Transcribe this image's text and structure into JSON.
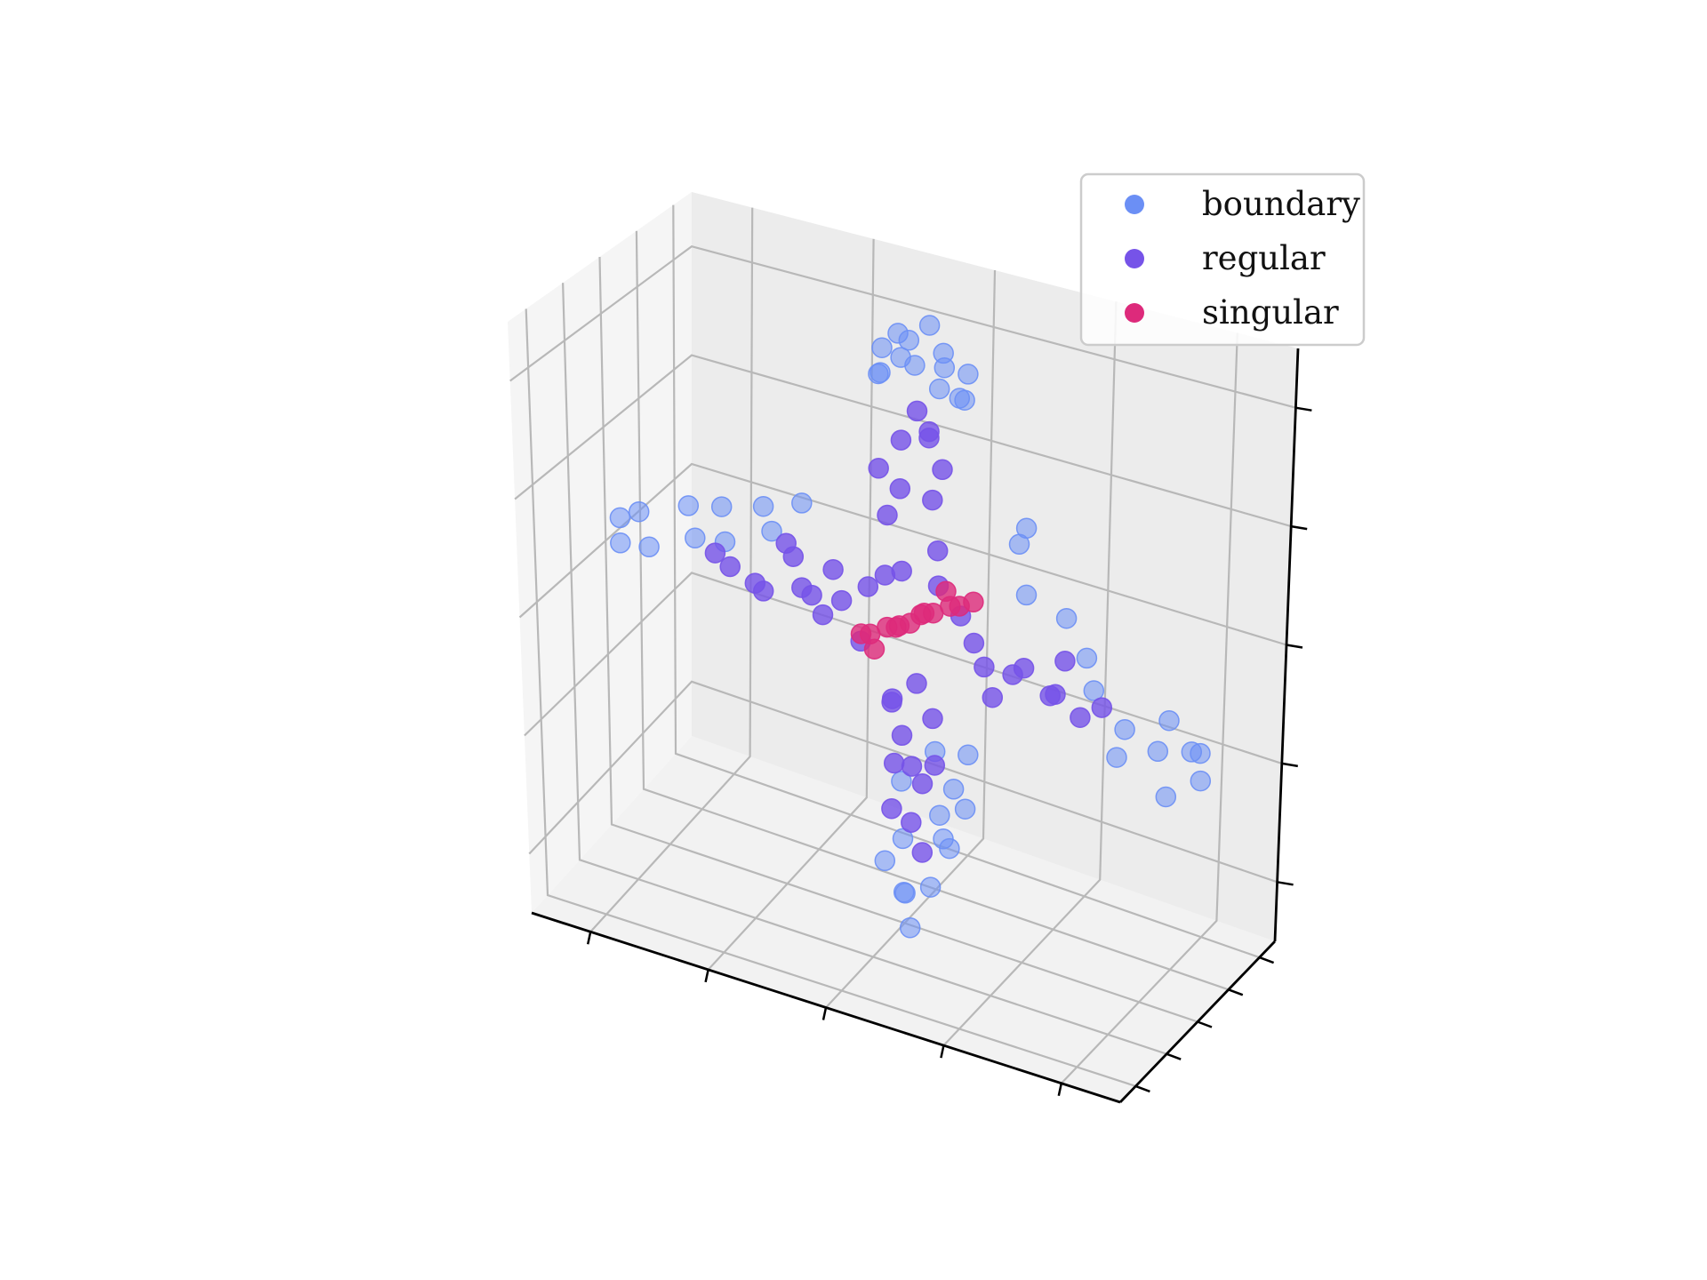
{
  "chart_data": {
    "type": "scatter",
    "projection": "3d",
    "title": "",
    "xlabel": "",
    "ylabel": "",
    "zlabel": "",
    "tick_labels_visible": false,
    "grid": true,
    "legend_position": "top-right",
    "series": [
      {
        "name": "boundary",
        "color": "#6b8ff5",
        "points": [
          [
            0.02,
            0.1,
            0.98
          ],
          [
            -0.06,
            0.02,
            0.95
          ],
          [
            0.1,
            -0.04,
            0.93
          ],
          [
            -0.12,
            0.06,
            0.88
          ],
          [
            0.16,
            0.04,
            0.86
          ],
          [
            -0.02,
            -0.1,
            0.9
          ],
          [
            0.06,
            0.14,
            0.84
          ],
          [
            -0.1,
            -0.06,
            0.82
          ],
          [
            0.18,
            -0.08,
            0.8
          ],
          [
            0.0,
            0.0,
            0.86
          ],
          [
            0.08,
            0.0,
            0.8
          ],
          [
            -0.14,
            0.12,
            0.78
          ],
          [
            0.12,
            0.1,
            0.76
          ],
          [
            -0.04,
            0.08,
            0.92
          ],
          [
            -0.98,
            0.1,
            0.06
          ],
          [
            -0.9,
            0.04,
            0.12
          ],
          [
            -0.84,
            -0.06,
            0.04
          ],
          [
            -0.76,
            0.12,
            0.16
          ],
          [
            -0.7,
            -0.02,
            0.1
          ],
          [
            -0.64,
            0.08,
            0.2
          ],
          [
            -0.58,
            -0.1,
            0.14
          ],
          [
            -0.52,
            0.14,
            0.22
          ],
          [
            -0.46,
            0.02,
            0.18
          ],
          [
            -0.94,
            -0.04,
            0.02
          ],
          [
            0.98,
            -0.08,
            -0.14
          ],
          [
            0.92,
            0.06,
            -0.18
          ],
          [
            0.86,
            -0.02,
            -0.08
          ],
          [
            0.8,
            0.1,
            -0.22
          ],
          [
            0.74,
            -0.12,
            -0.12
          ],
          [
            0.68,
            0.04,
            -0.26
          ],
          [
            0.62,
            -0.06,
            -0.04
          ],
          [
            0.94,
            0.12,
            -0.28
          ],
          [
            0.88,
            -0.1,
            -0.3
          ],
          [
            0.56,
            0.08,
            0.02
          ],
          [
            0.04,
            -0.08,
            -0.98
          ],
          [
            -0.02,
            0.06,
            -0.92
          ],
          [
            0.08,
            0.02,
            -0.86
          ],
          [
            -0.06,
            -0.04,
            -0.8
          ],
          [
            0.12,
            0.1,
            -0.74
          ],
          [
            0.02,
            -0.12,
            -0.68
          ],
          [
            0.1,
            0.04,
            -0.62
          ],
          [
            -0.04,
            0.08,
            -0.56
          ],
          [
            0.16,
            -0.02,
            -0.5
          ],
          [
            0.06,
            0.12,
            -0.44
          ],
          [
            0.2,
            0.0,
            -0.38
          ],
          [
            0.0,
            0.0,
            -0.9
          ],
          [
            0.18,
            0.06,
            -0.58
          ],
          [
            0.14,
            -0.06,
            -0.66
          ],
          [
            0.3,
            0.2,
            0.3
          ],
          [
            0.4,
            -0.1,
            0.22
          ],
          [
            0.48,
            0.12,
            0.12
          ],
          [
            0.36,
            0.04,
            0.4
          ],
          [
            -0.4,
            0.16,
            0.26
          ]
        ]
      },
      {
        "name": "regular",
        "color": "#7653e8",
        "points": [
          [
            0.0,
            0.04,
            0.7
          ],
          [
            0.06,
            -0.04,
            0.64
          ],
          [
            -0.06,
            0.08,
            0.58
          ],
          [
            0.08,
            0.06,
            0.52
          ],
          [
            -0.02,
            -0.08,
            0.46
          ],
          [
            0.04,
            0.1,
            0.4
          ],
          [
            -0.08,
            0.0,
            0.34
          ],
          [
            0.1,
            -0.06,
            0.28
          ],
          [
            0.02,
            0.12,
            0.62
          ],
          [
            -0.1,
            -0.04,
            0.5
          ],
          [
            -0.4,
            0.06,
            0.1
          ],
          [
            -0.34,
            -0.06,
            0.04
          ],
          [
            -0.28,
            0.1,
            0.08
          ],
          [
            -0.22,
            -0.02,
            0.02
          ],
          [
            -0.16,
            0.08,
            0.06
          ],
          [
            -0.46,
            -0.08,
            0.0
          ],
          [
            -0.52,
            0.04,
            -0.02
          ],
          [
            -0.58,
            -0.04,
            0.04
          ],
          [
            -0.36,
            0.14,
            -0.04
          ],
          [
            -0.26,
            -0.1,
            -0.02
          ],
          [
            -0.64,
            0.0,
            0.06
          ],
          [
            -0.44,
            0.12,
            0.12
          ],
          [
            0.2,
            0.04,
            -0.02
          ],
          [
            0.26,
            -0.06,
            -0.06
          ],
          [
            0.32,
            0.08,
            -0.1
          ],
          [
            0.38,
            -0.02,
            -0.04
          ],
          [
            0.44,
            0.1,
            -0.14
          ],
          [
            0.5,
            -0.08,
            -0.08
          ],
          [
            0.56,
            0.02,
            -0.16
          ],
          [
            0.62,
            0.06,
            -0.12
          ],
          [
            0.3,
            -0.1,
            -0.14
          ],
          [
            0.48,
            0.12,
            -0.02
          ],
          [
            0.02,
            0.02,
            -0.2
          ],
          [
            -0.04,
            -0.06,
            -0.26
          ],
          [
            0.06,
            0.08,
            -0.32
          ],
          [
            -0.02,
            0.0,
            -0.38
          ],
          [
            0.04,
            -0.1,
            -0.44
          ],
          [
            -0.06,
            0.06,
            -0.5
          ],
          [
            0.02,
            0.12,
            -0.56
          ],
          [
            -0.04,
            -0.04,
            -0.62
          ],
          [
            0.0,
            0.06,
            -0.68
          ],
          [
            0.06,
            -0.02,
            -0.74
          ],
          [
            -0.08,
            0.1,
            -0.3
          ],
          [
            0.08,
            0.04,
            -0.46
          ],
          [
            -0.1,
            0.06,
            0.12
          ],
          [
            0.1,
            -0.04,
            0.16
          ],
          [
            -0.14,
            -0.08,
            -0.08
          ],
          [
            0.14,
            0.1,
            0.04
          ],
          [
            0.0,
            -0.12,
            0.2
          ]
        ]
      },
      {
        "name": "singular",
        "color": "#dd2a7b",
        "points": [
          [
            0.0,
            0.0,
            0.0
          ],
          [
            0.04,
            0.02,
            0.04
          ],
          [
            -0.04,
            -0.02,
            -0.02
          ],
          [
            0.08,
            -0.02,
            0.06
          ],
          [
            -0.08,
            0.02,
            -0.04
          ],
          [
            0.12,
            0.04,
            0.08
          ],
          [
            -0.12,
            -0.04,
            -0.06
          ],
          [
            0.16,
            0.0,
            0.1
          ],
          [
            -0.16,
            0.0,
            -0.08
          ],
          [
            0.2,
            0.02,
            0.12
          ],
          [
            0.02,
            0.06,
            0.02
          ],
          [
            -0.02,
            -0.06,
            0.0
          ],
          [
            0.1,
            0.06,
            0.12
          ],
          [
            -0.1,
            -0.06,
            -0.1
          ]
        ]
      }
    ],
    "xlim": [
      -1,
      1
    ],
    "ylim": [
      -1,
      1
    ],
    "zlim": [
      -1,
      1
    ]
  }
}
